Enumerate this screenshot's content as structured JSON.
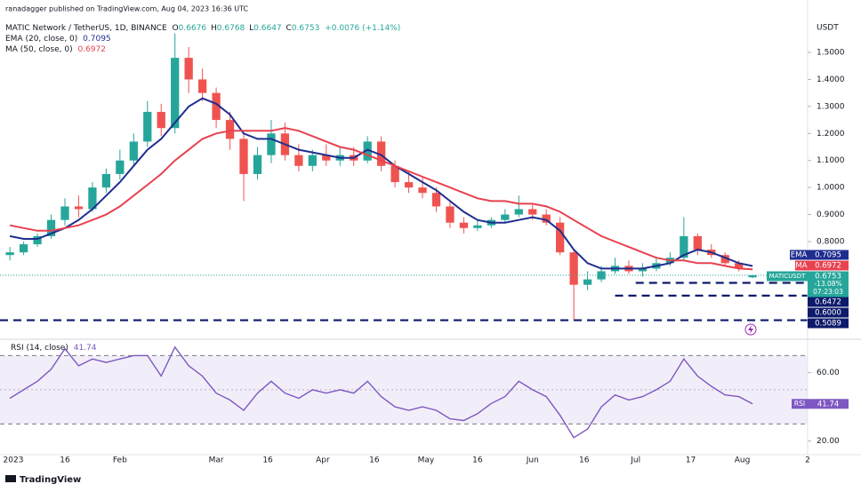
{
  "header": {
    "published": "ranadagger published on TradingView.com, Aug 04, 2023 16:36 UTC",
    "symbol": "MATIC Network / TetherUS, 1D, BINANCE",
    "open_label": "O",
    "high_label": "H",
    "low_label": "L",
    "close_label": "C",
    "change": "+0.0076 (+1.14%)"
  },
  "footer": {
    "brand": "TradingView"
  },
  "chart_data": [
    {
      "type": "candlestick",
      "currency": "USDT",
      "symbol": "MATICUSDT",
      "change_label": "-13.08%",
      "countdown": "07:23:03",
      "up_color": "#26a69a",
      "down_color": "#ef5350",
      "open": [
        0.75,
        0.76,
        0.79,
        0.82,
        0.88,
        0.93,
        0.92,
        1.0,
        1.05,
        1.1,
        1.17,
        1.28,
        1.22,
        1.48,
        1.4,
        1.35,
        1.25,
        1.18,
        1.05,
        1.12,
        1.2,
        1.12,
        1.08,
        1.12,
        1.1,
        1.12,
        1.1,
        1.17,
        1.08,
        1.02,
        1.0,
        0.98,
        0.93,
        0.87,
        0.85,
        0.86,
        0.88,
        0.9,
        0.92,
        0.9,
        0.87,
        0.76,
        0.64,
        0.66,
        0.69,
        0.71,
        0.69,
        0.7,
        0.72,
        0.74,
        0.82,
        0.77,
        0.75,
        0.72,
        0.6676
      ],
      "high": [
        0.78,
        0.8,
        0.83,
        0.9,
        0.96,
        0.97,
        1.02,
        1.07,
        1.14,
        1.2,
        1.32,
        1.31,
        1.57,
        1.52,
        1.44,
        1.37,
        1.28,
        1.2,
        1.15,
        1.25,
        1.24,
        1.16,
        1.14,
        1.16,
        1.15,
        1.15,
        1.19,
        1.19,
        1.1,
        1.06,
        1.04,
        1.0,
        0.95,
        0.89,
        0.88,
        0.89,
        0.92,
        0.97,
        0.94,
        0.92,
        0.89,
        0.77,
        0.69,
        0.71,
        0.74,
        0.73,
        0.72,
        0.74,
        0.76,
        0.89,
        0.83,
        0.79,
        0.76,
        0.73,
        0.6768
      ],
      "low": [
        0.73,
        0.75,
        0.78,
        0.81,
        0.86,
        0.89,
        0.91,
        0.98,
        1.03,
        1.08,
        1.15,
        1.19,
        1.2,
        1.35,
        1.32,
        1.22,
        1.14,
        0.95,
        1.03,
        1.09,
        1.1,
        1.06,
        1.06,
        1.08,
        1.08,
        1.08,
        1.09,
        1.06,
        1.0,
        0.98,
        0.96,
        0.91,
        0.85,
        0.83,
        0.84,
        0.85,
        0.87,
        0.89,
        0.88,
        0.86,
        0.75,
        0.51,
        0.62,
        0.65,
        0.68,
        0.68,
        0.67,
        0.69,
        0.71,
        0.73,
        0.75,
        0.74,
        0.71,
        0.69,
        0.6647
      ],
      "close": [
        0.76,
        0.79,
        0.82,
        0.88,
        0.93,
        0.92,
        1.0,
        1.05,
        1.1,
        1.17,
        1.28,
        1.22,
        1.48,
        1.4,
        1.35,
        1.25,
        1.18,
        1.05,
        1.12,
        1.2,
        1.12,
        1.08,
        1.12,
        1.1,
        1.12,
        1.1,
        1.17,
        1.08,
        1.02,
        1.0,
        0.98,
        0.93,
        0.87,
        0.85,
        0.86,
        0.88,
        0.9,
        0.92,
        0.9,
        0.87,
        0.76,
        0.64,
        0.66,
        0.69,
        0.71,
        0.69,
        0.7,
        0.72,
        0.74,
        0.82,
        0.77,
        0.75,
        0.72,
        0.7,
        0.6753
      ],
      "overlays": [
        {
          "name": "EMA (20, close, 0)",
          "short": "EMA",
          "color": "#1f2d8f",
          "values": [
            0.82,
            0.81,
            0.81,
            0.83,
            0.85,
            0.88,
            0.92,
            0.97,
            1.02,
            1.08,
            1.14,
            1.18,
            1.24,
            1.3,
            1.33,
            1.31,
            1.27,
            1.2,
            1.18,
            1.18,
            1.16,
            1.14,
            1.13,
            1.12,
            1.11,
            1.11,
            1.14,
            1.12,
            1.08,
            1.05,
            1.02,
            0.99,
            0.95,
            0.91,
            0.88,
            0.87,
            0.87,
            0.88,
            0.89,
            0.88,
            0.84,
            0.77,
            0.72,
            0.7,
            0.7,
            0.7,
            0.7,
            0.71,
            0.72,
            0.75,
            0.77,
            0.76,
            0.74,
            0.72,
            0.7095
          ]
        },
        {
          "name": "MA (50, close, 0)",
          "short": "MA",
          "color": "#e8414f",
          "values": [
            0.86,
            0.85,
            0.84,
            0.84,
            0.85,
            0.86,
            0.88,
            0.9,
            0.93,
            0.97,
            1.01,
            1.05,
            1.1,
            1.14,
            1.18,
            1.2,
            1.21,
            1.21,
            1.21,
            1.21,
            1.22,
            1.21,
            1.19,
            1.17,
            1.15,
            1.14,
            1.12,
            1.1,
            1.08,
            1.06,
            1.04,
            1.02,
            1.0,
            0.98,
            0.96,
            0.95,
            0.95,
            0.94,
            0.94,
            0.93,
            0.91,
            0.88,
            0.85,
            0.82,
            0.8,
            0.78,
            0.76,
            0.74,
            0.73,
            0.73,
            0.72,
            0.72,
            0.71,
            0.7,
            0.6972
          ]
        }
      ],
      "levels": [
        {
          "value": 0.6472,
          "from": 45.5
        },
        {
          "value": 0.6,
          "label": "0.6000",
          "from": 44
        },
        {
          "value": 0.5089
        }
      ],
      "level_color": "#0d1a6b",
      "xlim": [
        -0.72,
        58
      ],
      "xticks": [
        {
          "value": 0.25,
          "label": "2023"
        },
        {
          "value": 4,
          "label": "16"
        },
        {
          "value": 8,
          "label": "Feb"
        },
        {
          "value": 15,
          "label": "Mar"
        },
        {
          "value": 18.75,
          "label": "16"
        },
        {
          "value": 22.75,
          "label": "Apr"
        },
        {
          "value": 26.5,
          "label": "16"
        },
        {
          "value": 30.25,
          "label": "May"
        },
        {
          "value": 34,
          "label": "16"
        },
        {
          "value": 38,
          "label": "Jun"
        },
        {
          "value": 41.75,
          "label": "16"
        },
        {
          "value": 45.5,
          "label": "Jul"
        },
        {
          "value": 49.5,
          "label": "17"
        },
        {
          "value": 53.25,
          "label": "Aug"
        },
        {
          "value": 58,
          "label": "2"
        }
      ],
      "ylim": [
        0.445,
        1.694
      ],
      "yticks": [
        {
          "value": 0.8,
          "label": "0.8000"
        },
        {
          "value": 0.9,
          "label": "0.9000"
        },
        {
          "value": 1.0,
          "label": "1.0000"
        },
        {
          "value": 1.1,
          "label": "1.1000"
        },
        {
          "value": 1.2,
          "label": "1.2000"
        },
        {
          "value": 1.3,
          "label": "1.3000"
        },
        {
          "value": 1.4,
          "label": "1.4000"
        },
        {
          "value": 1.5,
          "label": "1.5000"
        }
      ]
    },
    {
      "type": "line",
      "title": "RSI (14, close)",
      "series": [
        {
          "name": "RSI",
          "color": "#7e57c2",
          "values": [
            45,
            50,
            55,
            62,
            74,
            64,
            68,
            66,
            68,
            70,
            70,
            58,
            75,
            64,
            58,
            48,
            44,
            38,
            48,
            55,
            48,
            45,
            50,
            48,
            50,
            48,
            55,
            46,
            40,
            38,
            40,
            38,
            33,
            32,
            36,
            42,
            46,
            55,
            50,
            46,
            35,
            22,
            27,
            40,
            47,
            44,
            46,
            50,
            55,
            68,
            58,
            52,
            47,
            46,
            41.74
          ]
        }
      ],
      "bands": [
        30,
        70
      ],
      "midline": 50,
      "band_color": "#7e57c2",
      "ylim": [
        12,
        78
      ],
      "yticks": [
        {
          "value": 20,
          "label": "20.00"
        },
        {
          "value": 60,
          "label": "60.00"
        }
      ]
    }
  ]
}
